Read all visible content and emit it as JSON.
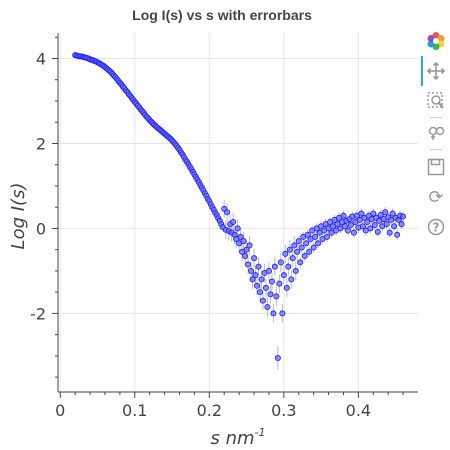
{
  "chart_data": {
    "type": "scatter",
    "title": "Log I(s) vs s with errorbars",
    "xlabel_main": "s nm",
    "xlabel_sup": "-1",
    "ylabel": "Log I(s)",
    "xlim": [
      -0.003,
      0.48
    ],
    "ylim": [
      -3.85,
      4.6
    ],
    "x_ticks": [
      0,
      0.1,
      0.2,
      0.3,
      0.4
    ],
    "x_tick_labels": [
      "0",
      "0.1",
      "0.2",
      "0.3",
      "0.4"
    ],
    "y_ticks": [
      -2,
      0,
      2,
      4
    ],
    "y_tick_labels": [
      "-2",
      "0",
      "2",
      "4"
    ],
    "grid": true,
    "marker_fill": "#6e6ef0",
    "marker_edge": "#1a1aff",
    "errorbar_color": "#b8b8d8",
    "points": [
      [
        0.02,
        4.08
      ],
      [
        0.022,
        4.07
      ],
      [
        0.024,
        4.06
      ],
      [
        0.026,
        4.05
      ],
      [
        0.028,
        4.05
      ],
      [
        0.03,
        4.04
      ],
      [
        0.032,
        4.03
      ],
      [
        0.034,
        4.02
      ],
      [
        0.036,
        4.01
      ],
      [
        0.038,
        4.0
      ],
      [
        0.04,
        3.98
      ],
      [
        0.042,
        3.97
      ],
      [
        0.044,
        3.96
      ],
      [
        0.046,
        3.94
      ],
      [
        0.048,
        3.93
      ],
      [
        0.05,
        3.91
      ],
      [
        0.052,
        3.89
      ],
      [
        0.054,
        3.87
      ],
      [
        0.056,
        3.85
      ],
      [
        0.058,
        3.83
      ],
      [
        0.06,
        3.8
      ],
      [
        0.062,
        3.77
      ],
      [
        0.064,
        3.74
      ],
      [
        0.066,
        3.71
      ],
      [
        0.068,
        3.68
      ],
      [
        0.07,
        3.64
      ],
      [
        0.072,
        3.6
      ],
      [
        0.074,
        3.56
      ],
      [
        0.076,
        3.52
      ],
      [
        0.078,
        3.47
      ],
      [
        0.08,
        3.43
      ],
      [
        0.082,
        3.39
      ],
      [
        0.084,
        3.34
      ],
      [
        0.086,
        3.3
      ],
      [
        0.088,
        3.25
      ],
      [
        0.09,
        3.21
      ],
      [
        0.092,
        3.16
      ],
      [
        0.094,
        3.12
      ],
      [
        0.096,
        3.07
      ],
      [
        0.098,
        3.03
      ],
      [
        0.1,
        2.98
      ],
      [
        0.102,
        2.94
      ],
      [
        0.104,
        2.89
      ],
      [
        0.106,
        2.85
      ],
      [
        0.108,
        2.8
      ],
      [
        0.11,
        2.76
      ],
      [
        0.112,
        2.72
      ],
      [
        0.114,
        2.67
      ],
      [
        0.116,
        2.63
      ],
      [
        0.118,
        2.59
      ],
      [
        0.12,
        2.55
      ],
      [
        0.122,
        2.51
      ],
      [
        0.124,
        2.48
      ],
      [
        0.126,
        2.44
      ],
      [
        0.128,
        2.41
      ],
      [
        0.13,
        2.38
      ],
      [
        0.132,
        2.35
      ],
      [
        0.134,
        2.32
      ],
      [
        0.136,
        2.29
      ],
      [
        0.138,
        2.26
      ],
      [
        0.14,
        2.23
      ],
      [
        0.142,
        2.2
      ],
      [
        0.144,
        2.17
      ],
      [
        0.146,
        2.14
      ],
      [
        0.148,
        2.11
      ],
      [
        0.15,
        2.07
      ],
      [
        0.152,
        2.03
      ],
      [
        0.154,
        1.99
      ],
      [
        0.156,
        1.95
      ],
      [
        0.158,
        1.9
      ],
      [
        0.16,
        1.85
      ],
      [
        0.162,
        1.79
      ],
      [
        0.164,
        1.74
      ],
      [
        0.166,
        1.68
      ],
      [
        0.168,
        1.62
      ],
      [
        0.17,
        1.57
      ],
      [
        0.172,
        1.51
      ],
      [
        0.174,
        1.45
      ],
      [
        0.176,
        1.39
      ],
      [
        0.178,
        1.33
      ],
      [
        0.18,
        1.27
      ],
      [
        0.182,
        1.21
      ],
      [
        0.184,
        1.15
      ],
      [
        0.186,
        1.09
      ],
      [
        0.188,
        1.02
      ],
      [
        0.19,
        0.96
      ],
      [
        0.192,
        0.9
      ],
      [
        0.194,
        0.83
      ],
      [
        0.196,
        0.77
      ],
      [
        0.198,
        0.7
      ],
      [
        0.2,
        0.64
      ],
      [
        0.202,
        0.57
      ],
      [
        0.204,
        0.5
      ],
      [
        0.206,
        0.44
      ],
      [
        0.208,
        0.37
      ],
      [
        0.21,
        0.31
      ],
      [
        0.212,
        0.24
      ],
      [
        0.214,
        0.18
      ],
      [
        0.216,
        0.1
      ],
      [
        0.218,
        0.03
      ],
      [
        0.22,
        0.46
      ],
      [
        0.222,
        -0.03
      ],
      [
        0.224,
        0.38
      ],
      [
        0.226,
        -0.06
      ],
      [
        0.228,
        0.1
      ],
      [
        0.23,
        -0.1
      ],
      [
        0.232,
        0.15
      ],
      [
        0.234,
        -0.15
      ],
      [
        0.236,
        -0.25
      ],
      [
        0.238,
        0.0
      ],
      [
        0.24,
        -0.35
      ],
      [
        0.242,
        -0.2
      ],
      [
        0.244,
        -0.55
      ],
      [
        0.246,
        -0.3
      ],
      [
        0.248,
        -0.65
      ],
      [
        0.25,
        -0.5
      ],
      [
        0.252,
        -0.85
      ],
      [
        0.254,
        -0.4
      ],
      [
        0.256,
        -1.0
      ],
      [
        0.258,
        -1.2
      ],
      [
        0.26,
        -0.7
      ],
      [
        0.262,
        -1.1
      ],
      [
        0.264,
        -1.35
      ],
      [
        0.266,
        -0.9
      ],
      [
        0.268,
        -1.5
      ],
      [
        0.27,
        -1.2
      ],
      [
        0.272,
        -1.7
      ],
      [
        0.274,
        -1.05
      ],
      [
        0.276,
        -1.4
      ],
      [
        0.278,
        -1.85
      ],
      [
        0.28,
        -1.0
      ],
      [
        0.282,
        -1.55
      ],
      [
        0.284,
        -1.25
      ],
      [
        0.286,
        -2.0
      ],
      [
        0.288,
        -0.9
      ],
      [
        0.29,
        -1.6
      ],
      [
        0.292,
        -3.05
      ],
      [
        0.294,
        -1.3
      ],
      [
        0.296,
        -0.8
      ],
      [
        0.298,
        -2.0
      ],
      [
        0.3,
        -1.1
      ],
      [
        0.302,
        -0.6
      ],
      [
        0.304,
        -1.4
      ],
      [
        0.306,
        -0.9
      ],
      [
        0.308,
        -0.5
      ],
      [
        0.31,
        -1.2
      ],
      [
        0.312,
        -0.7
      ],
      [
        0.314,
        -0.4
      ],
      [
        0.316,
        -1.0
      ],
      [
        0.318,
        -0.55
      ],
      [
        0.32,
        -0.3
      ],
      [
        0.322,
        -0.8
      ],
      [
        0.324,
        -0.45
      ],
      [
        0.326,
        -0.2
      ],
      [
        0.328,
        -0.65
      ],
      [
        0.33,
        -0.35
      ],
      [
        0.332,
        -0.15
      ],
      [
        0.334,
        -0.55
      ],
      [
        0.336,
        -0.25
      ],
      [
        0.338,
        -0.05
      ],
      [
        0.34,
        -0.45
      ],
      [
        0.342,
        -0.2
      ],
      [
        0.344,
        0.0
      ],
      [
        0.346,
        -0.35
      ],
      [
        0.348,
        -0.1
      ],
      [
        0.35,
        0.05
      ],
      [
        0.352,
        -0.25
      ],
      [
        0.354,
        -0.05
      ],
      [
        0.356,
        0.1
      ],
      [
        0.358,
        -0.2
      ],
      [
        0.36,
        0.0
      ],
      [
        0.362,
        0.15
      ],
      [
        0.364,
        -0.1
      ],
      [
        0.366,
        0.05
      ],
      [
        0.368,
        0.2
      ],
      [
        0.37,
        -0.05
      ],
      [
        0.372,
        0.1
      ],
      [
        0.374,
        0.25
      ],
      [
        0.376,
        0.0
      ],
      [
        0.378,
        0.15
      ],
      [
        0.38,
        0.3
      ],
      [
        0.382,
        0.05
      ],
      [
        0.384,
        0.18
      ],
      [
        0.386,
        -0.05
      ],
      [
        0.388,
        0.22
      ],
      [
        0.39,
        0.08
      ],
      [
        0.392,
        0.28
      ],
      [
        0.394,
        -0.1
      ],
      [
        0.396,
        0.15
      ],
      [
        0.398,
        0.3
      ],
      [
        0.4,
        0.02
      ],
      [
        0.402,
        0.2
      ],
      [
        0.404,
        0.35
      ],
      [
        0.406,
        0.05
      ],
      [
        0.408,
        0.25
      ],
      [
        0.41,
        -0.05
      ],
      [
        0.412,
        0.15
      ],
      [
        0.414,
        0.3
      ],
      [
        0.416,
        0.0
      ],
      [
        0.418,
        0.22
      ],
      [
        0.42,
        0.35
      ],
      [
        0.422,
        0.08
      ],
      [
        0.424,
        0.25
      ],
      [
        0.426,
        -0.08
      ],
      [
        0.428,
        0.18
      ],
      [
        0.43,
        0.32
      ],
      [
        0.432,
        0.05
      ],
      [
        0.434,
        0.22
      ],
      [
        0.436,
        0.38
      ],
      [
        0.438,
        0.1
      ],
      [
        0.44,
        0.26
      ],
      [
        0.442,
        -0.1
      ],
      [
        0.444,
        0.2
      ],
      [
        0.446,
        0.35
      ],
      [
        0.448,
        0.05
      ],
      [
        0.45,
        0.25
      ],
      [
        0.452,
        -0.15
      ],
      [
        0.454,
        0.2
      ],
      [
        0.456,
        0.3
      ],
      [
        0.458,
        0.1
      ],
      [
        0.46,
        0.28
      ]
    ]
  },
  "toolbar": {
    "tools": [
      "bokeh-logo-icon",
      "pan-icon",
      "box-zoom-icon",
      "wheel-zoom-icon",
      "save-icon",
      "reset-icon",
      "help-icon"
    ],
    "help_glyph": "?",
    "reset_glyph": "⟳"
  }
}
